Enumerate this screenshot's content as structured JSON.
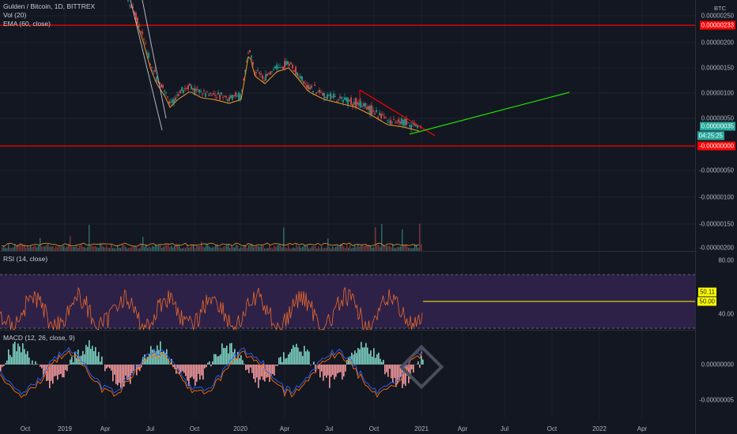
{
  "legend": {
    "symbol": "Gulden / Bitcoin, 1D, BITTREX",
    "vol": "Vol (20)",
    "ema": "EMA (60, close)",
    "rsi": "RSI (14, close)",
    "macd": "MACD (12, 26, close, 9)"
  },
  "axis": {
    "unit": "BTC",
    "price_ticks": [
      "0.00000250",
      "0.00000200",
      "0.00000150",
      "0.00000100",
      "0.00000050",
      "-0.00000050",
      "-0.00000100",
      "-0.00000150",
      "-0.00000200"
    ],
    "rsi_ticks": [
      "80.00",
      "40.00"
    ],
    "macd_ticks": [
      "0.00000000",
      "-0.00000005"
    ],
    "x_ticks": [
      "Oct",
      "2019",
      "Apr",
      "Jul",
      "Oct",
      "2020",
      "Apr",
      "Jul",
      "Oct",
      "2021",
      "Apr",
      "Jul",
      "Oct",
      "2022",
      "Apr"
    ]
  },
  "tags": {
    "upper_line": "0.00000233",
    "last_price": "0.00000035",
    "countdown": "04:25:25",
    "lower_line": "-0.00000000",
    "rsi_a": "50.11",
    "rsi_b": "50.00"
  },
  "colors": {
    "background": "#131722",
    "red_line": "#ff0000",
    "green_line": "#22dd00",
    "ema": "#f0962a",
    "rsi_band": "#2e2148",
    "rsi_line": "#e8692b",
    "rsi_level": "#ffff00",
    "macd_pos": "#7ed3c4",
    "macd_neg": "#f39a9e",
    "macd_line": "#2962ff",
    "signal_line": "#ff6d00",
    "price_tag": "#26a69a"
  }
}
